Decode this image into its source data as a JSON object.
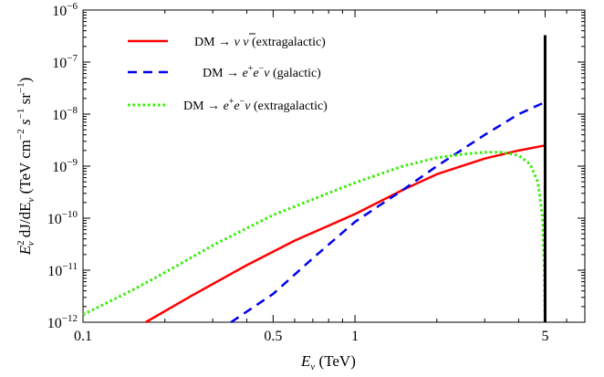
{
  "chart_data": {
    "type": "line",
    "xlabel": "E_ν (TeV)",
    "xlabel_parts": {
      "sym": "E",
      "sub": "ν",
      "rest": " (TeV)"
    },
    "ylabel_parts": {
      "sym": "E",
      "sup": "2",
      "sub": "ν",
      "mid": " dJ/dE",
      "sub2": "ν",
      "unit": " (TeV cm",
      "e1": "−2",
      "u2": " s",
      "e2": "−1",
      "u3": " sr",
      "e3": "−1",
      "close": ")"
    },
    "x_scale": "log",
    "y_scale": "log",
    "xlim": [
      0.1,
      7
    ],
    "ylim": [
      1e-12,
      1e-06
    ],
    "grid": false,
    "legend_position": "top-left",
    "x_tick_labels": [
      {
        "value": 0.1,
        "label": "0.1"
      },
      {
        "value": 0.5,
        "label": "0.5"
      },
      {
        "value": 1,
        "label": "1"
      },
      {
        "value": 5,
        "label": "5"
      }
    ],
    "y_tick_labels": [
      {
        "value": 1e-12,
        "base": "10",
        "exp": "−12"
      },
      {
        "value": 1e-11,
        "base": "10",
        "exp": "−11"
      },
      {
        "value": 1e-10,
        "base": "10",
        "exp": "−10"
      },
      {
        "value": 1e-09,
        "base": "10",
        "exp": "−9"
      },
      {
        "value": 1e-08,
        "base": "10",
        "exp": "−8"
      },
      {
        "value": 1e-07,
        "base": "10",
        "exp": "−7"
      },
      {
        "value": 1e-06,
        "base": "10",
        "exp": "−6"
      }
    ],
    "series": [
      {
        "name": "DM → ν ν̄ (extragalactic)",
        "legend": {
          "pre": "DM → ",
          "mid": "ν ",
          "nubar": "ν",
          "post": " (extragalactic)"
        },
        "color": "#ff0000",
        "style": "solid",
        "x": [
          0.17,
          0.25,
          0.4,
          0.6,
          1.0,
          1.5,
          2.0,
          3.0,
          4.0,
          5.0
        ],
        "y": [
          1e-12,
          3.2e-12,
          1.25e-11,
          3.7e-11,
          1.2e-10,
          3.5e-10,
          7e-10,
          1.4e-09,
          2e-09,
          2.5e-09
        ]
      },
      {
        "name": "DM → e+e−ν (galactic)",
        "legend": {
          "pre": "DM → ",
          "e1": "e",
          "s1": "+",
          "e2": "e",
          "s2": "−",
          "nu": "ν",
          "post": " (galactic)"
        },
        "color": "#0000ee",
        "style": "dashed",
        "x": [
          0.35,
          0.5,
          0.7,
          1.0,
          1.5,
          2.0,
          3.0,
          4.0,
          5.0
        ],
        "y": [
          1e-12,
          3.5e-12,
          1.7e-11,
          8.5e-11,
          3.5e-10,
          1e-09,
          4e-09,
          1e-08,
          1.7e-08
        ]
      },
      {
        "name": "DM → e+e−ν (extragalactic)",
        "legend": {
          "pre": "DM → ",
          "e1": "e",
          "s1": "+",
          "e2": "e",
          "s2": "−",
          "nu": "ν",
          "post": " (extragalactic)"
        },
        "color": "#33ee00",
        "style": "dotted",
        "x": [
          0.1,
          0.15,
          0.2,
          0.3,
          0.5,
          0.7,
          1.0,
          1.5,
          2.0,
          2.5,
          3.0,
          3.5,
          4.0,
          4.4,
          4.7,
          4.9,
          4.97,
          5.0
        ],
        "y": [
          1.4e-12,
          4e-12,
          9e-12,
          3e-11,
          1.15e-10,
          2.3e-10,
          4.8e-10,
          1e-09,
          1.45e-09,
          1.7e-09,
          1.85e-09,
          1.85e-09,
          1.6e-09,
          1.1e-09,
          5e-10,
          1e-10,
          1e-11,
          1e-12
        ]
      }
    ],
    "cutoff_line": {
      "x": 5,
      "y_top": 3.3e-07,
      "color": "#000000"
    }
  }
}
